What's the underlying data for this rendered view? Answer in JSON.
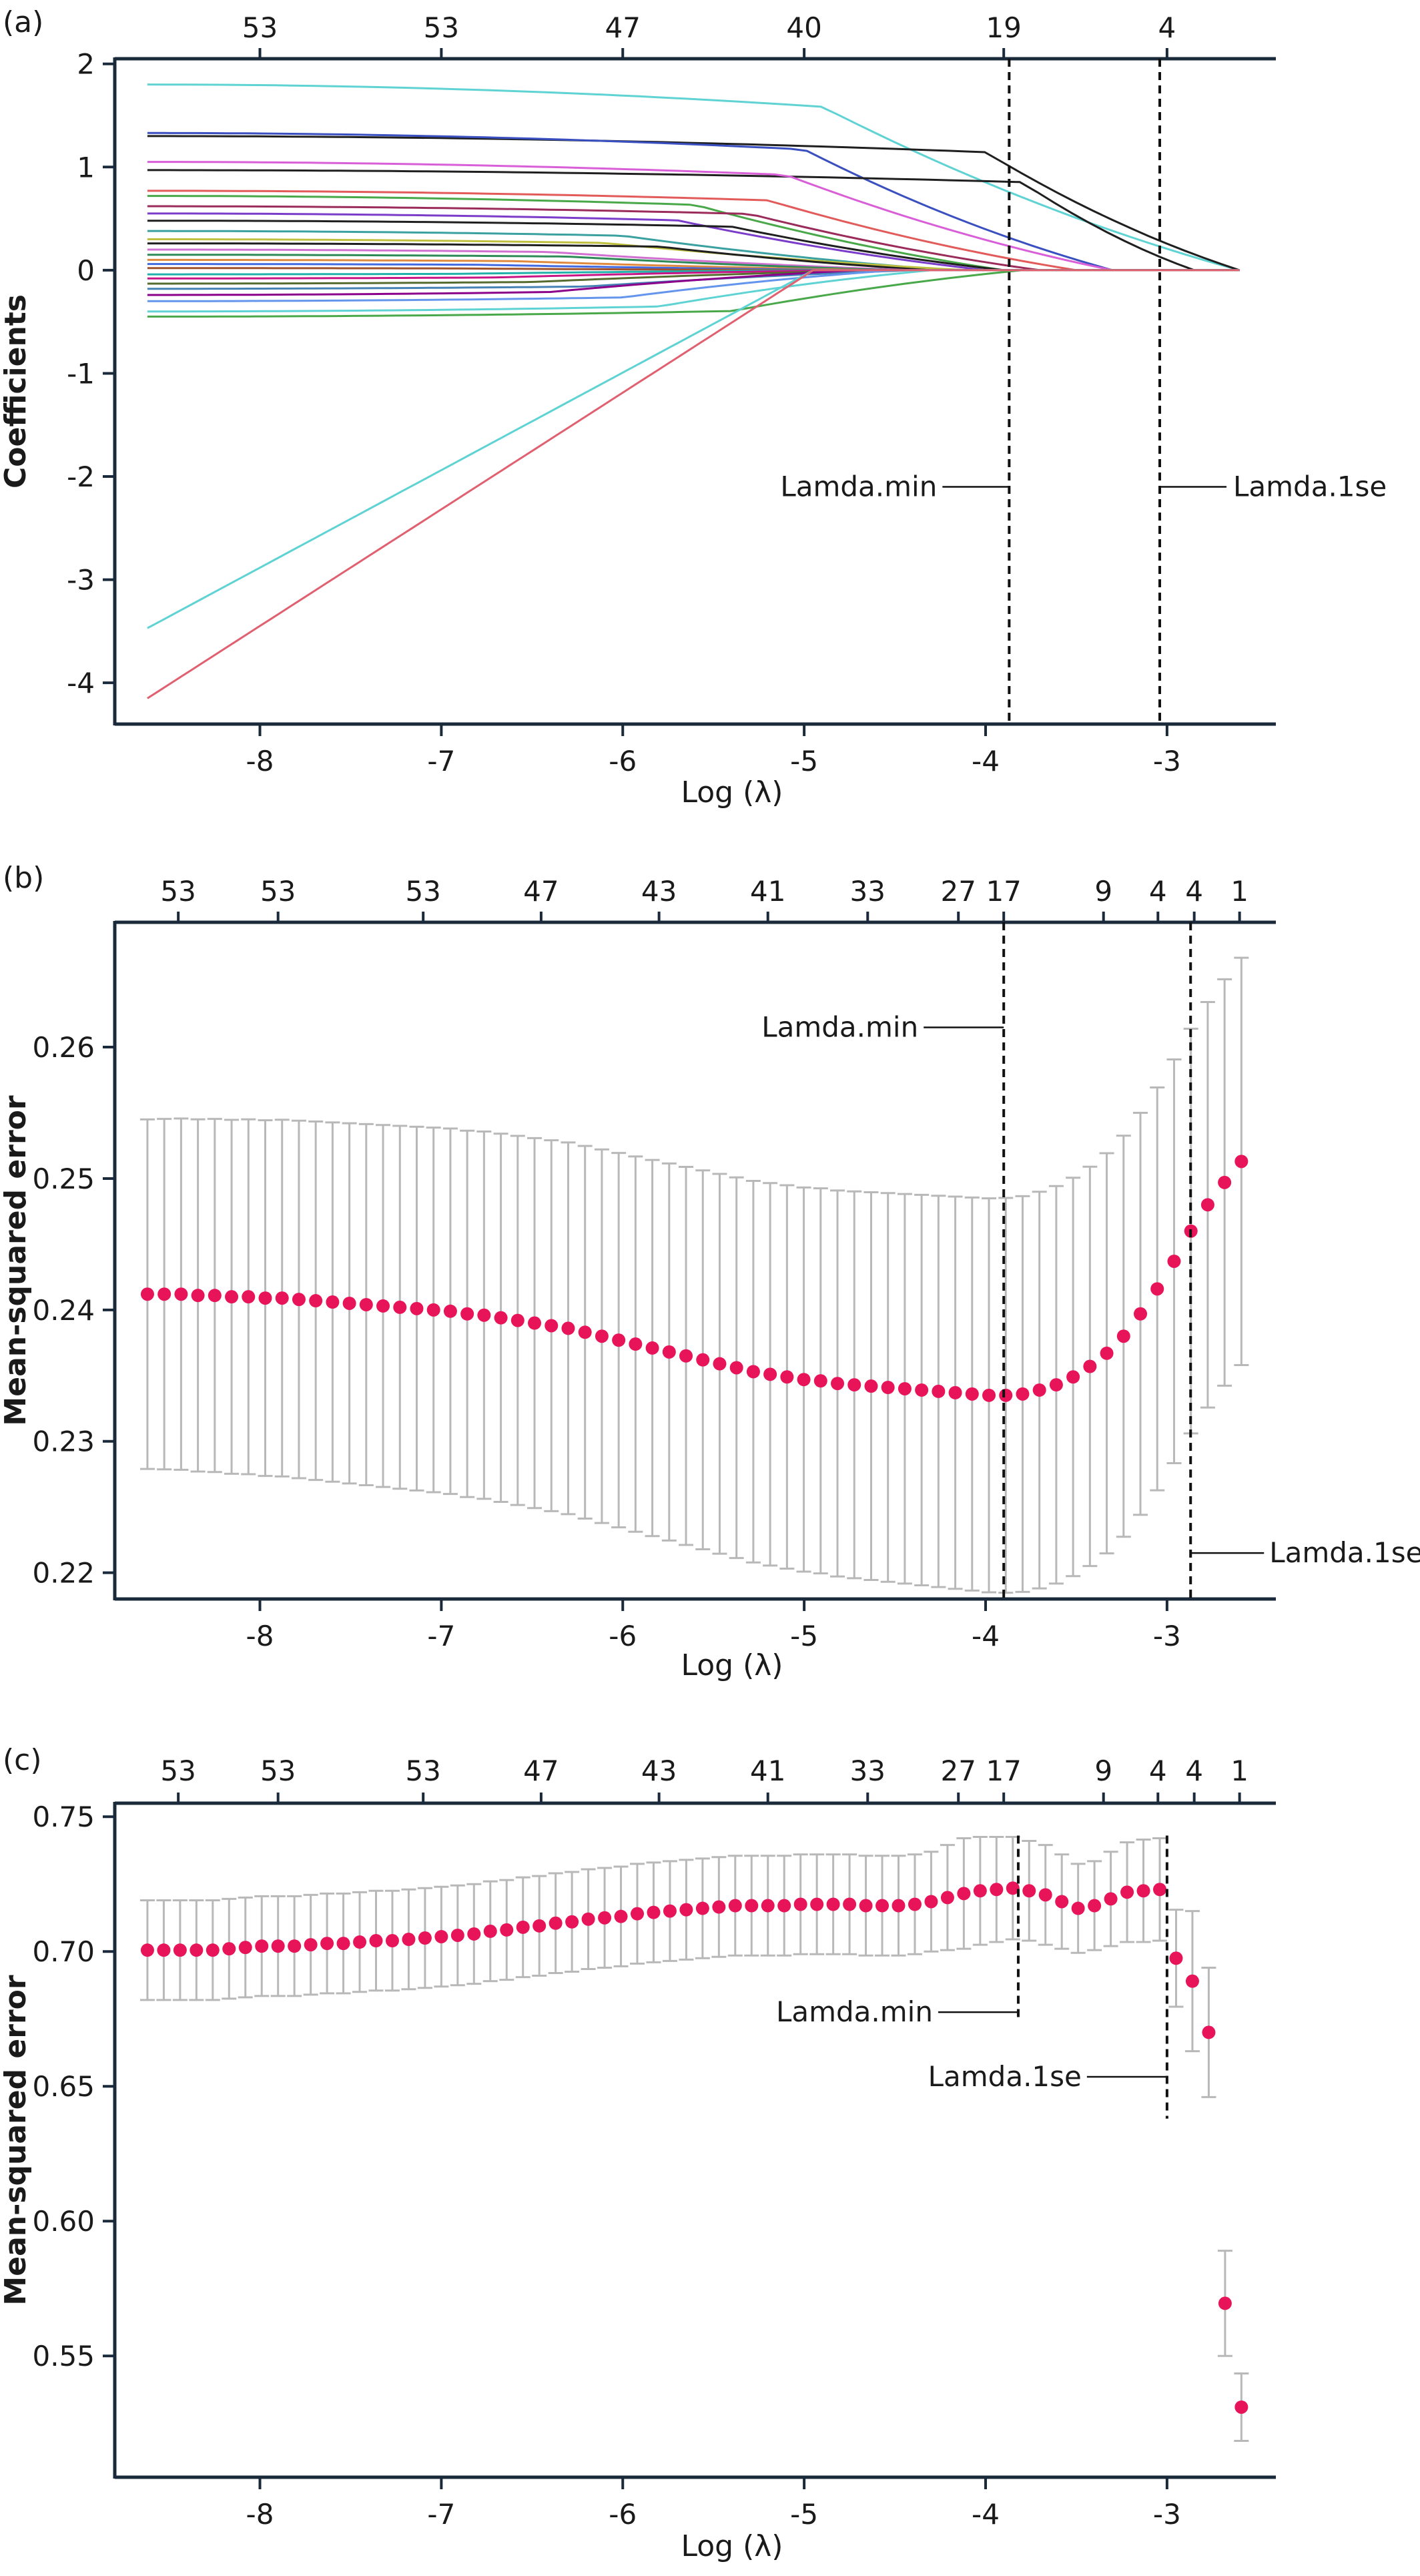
{
  "panels_labels": [
    "(a)",
    "(b)",
    "(c)"
  ],
  "chart_data": [
    {
      "type": "line",
      "panel": "(a)",
      "xlabel": "Log (λ)",
      "ylabel": "Coefficients",
      "xlim": [
        -8.8,
        -2.4
      ],
      "ylim": [
        -4.4,
        2.05
      ],
      "xticks": [
        -8,
        -7,
        -6,
        -5,
        -4,
        -3
      ],
      "yticks": [
        2,
        1,
        0,
        -1,
        -2,
        -3,
        -4
      ],
      "top_ticks": [
        {
          "x": -8,
          "label": "53"
        },
        {
          "x": -7,
          "label": "53"
        },
        {
          "x": -6,
          "label": "47"
        },
        {
          "x": -5,
          "label": "40"
        },
        {
          "x": -3.9,
          "label": "19"
        },
        {
          "x": -3,
          "label": "4"
        }
      ],
      "vlines": [
        {
          "x": -3.87,
          "label": "Lamda.min"
        },
        {
          "x": -3.04,
          "label": "Lamda.1se"
        }
      ],
      "annotation_y": -2.1,
      "x_start": -8.62,
      "series": [
        {
          "color": "#5fd3d3",
          "start": 1.8,
          "end_x": -2.6,
          "drop_x": -4.9
        },
        {
          "color": "#1f1f1f",
          "start": 1.3,
          "end_x": -2.6,
          "drop_x": -4.0
        },
        {
          "color": "#3a4fc0",
          "start": 1.33,
          "end_x": -3.3,
          "drop_x": -5.0
        },
        {
          "color": "#1f1f1f",
          "start": 0.97,
          "end_x": -2.85,
          "drop_x": -3.8
        },
        {
          "color": "#d95fd9",
          "start": 1.05,
          "end_x": -3.3,
          "drop_x": -5.1
        },
        {
          "color": "#e25a5a",
          "start": 0.77,
          "end_x": -3.5,
          "drop_x": -5.2
        },
        {
          "color": "#49a849",
          "start": 0.72,
          "end_x": -3.9,
          "drop_x": -5.6
        },
        {
          "color": "#9b2b5a",
          "start": 0.62,
          "end_x": -3.7,
          "drop_x": -5.3
        },
        {
          "color": "#7a3cc9",
          "start": 0.55,
          "end_x": -4.0,
          "drop_x": -5.7
        },
        {
          "color": "#1f1f1f",
          "start": 0.48,
          "end_x": -3.9,
          "drop_x": -5.4
        },
        {
          "color": "#3aa0a0",
          "start": 0.38,
          "end_x": -4.2,
          "drop_x": -6.0
        },
        {
          "color": "#c0c040",
          "start": 0.3,
          "end_x": -4.1,
          "drop_x": -6.1
        },
        {
          "color": "#1f1f1f",
          "start": 0.26,
          "end_x": -4.3,
          "drop_x": -5.8
        },
        {
          "color": "#d070d0",
          "start": 0.2,
          "end_x": -4.4,
          "drop_x": -6.4
        },
        {
          "color": "#2e8b57",
          "start": 0.15,
          "end_x": -4.5,
          "drop_x": -6.3
        },
        {
          "color": "#e08a40",
          "start": 0.1,
          "end_x": -4.6,
          "drop_x": -6.6
        },
        {
          "color": "#4169e1",
          "start": 0.06,
          "end_x": -4.7,
          "drop_x": -6.8
        },
        {
          "color": "#a0522d",
          "start": 0.02,
          "end_x": -4.8,
          "drop_x": -7.0
        },
        {
          "color": "#20b2aa",
          "start": -0.04,
          "end_x": -4.9,
          "drop_x": -6.9
        },
        {
          "color": "#c71585",
          "start": -0.08,
          "end_x": -4.8,
          "drop_x": -6.7
        },
        {
          "color": "#556b2f",
          "start": -0.13,
          "end_x": -4.6,
          "drop_x": -6.5
        },
        {
          "color": "#4682b4",
          "start": -0.18,
          "end_x": -4.4,
          "drop_x": -6.2
        },
        {
          "color": "#8b008b",
          "start": -0.24,
          "end_x": -4.7,
          "drop_x": -6.4
        },
        {
          "color": "#6495ed",
          "start": -0.3,
          "end_x": -4.5,
          "drop_x": -6.0
        },
        {
          "color": "#5fd3d3",
          "start": -0.4,
          "end_x": -4.3,
          "drop_x": -5.8
        },
        {
          "color": "#49a849",
          "start": -0.45,
          "end_x": -3.8,
          "drop_x": -5.4
        },
        {
          "color": "#5fd3d3",
          "start": -3.47,
          "end_x": -4.95,
          "drop_x": -4.95
        },
        {
          "color": "#e06070",
          "start": -4.15,
          "end_x": -4.95,
          "drop_x": -4.95
        }
      ]
    },
    {
      "type": "scatter",
      "panel": "(b)",
      "xlabel": "Log (λ)",
      "ylabel": "Mean-squared error",
      "xlim": [
        -8.8,
        -2.4
      ],
      "ylim": [
        0.218,
        0.2695
      ],
      "xticks": [
        -8,
        -7,
        -6,
        -5,
        -4,
        -3
      ],
      "yticks": [
        0.26,
        0.25,
        0.24,
        0.23,
        0.22
      ],
      "ytick_labels": [
        "0.26",
        "0.25",
        "0.24",
        "0.23",
        "0.22"
      ],
      "top_ticks": [
        {
          "x": -8.45,
          "label": "53"
        },
        {
          "x": -7.9,
          "label": "53"
        },
        {
          "x": -7.1,
          "label": "53"
        },
        {
          "x": -6.45,
          "label": "47"
        },
        {
          "x": -5.8,
          "label": "43"
        },
        {
          "x": -5.2,
          "label": "41"
        },
        {
          "x": -4.65,
          "label": "33"
        },
        {
          "x": -4.15,
          "label": "27"
        },
        {
          "x": -3.9,
          "label": "17"
        },
        {
          "x": -3.35,
          "label": "9"
        },
        {
          "x": -3.05,
          "label": "4"
        },
        {
          "x": -2.85,
          "label": "4"
        },
        {
          "x": -2.6,
          "label": "1"
        }
      ],
      "vlines": [
        {
          "x": -3.9,
          "label": "Lamda.min",
          "side": "left",
          "y": 0.2615
        },
        {
          "x": -2.87,
          "label": "Lamda.1se",
          "side": "right",
          "y": 0.2215
        }
      ],
      "x_start": -8.62,
      "x_end": -2.59,
      "points": [
        0.2412,
        0.2412,
        0.2412,
        0.2411,
        0.2411,
        0.241,
        0.241,
        0.2409,
        0.2409,
        0.2408,
        0.2407,
        0.2406,
        0.2405,
        0.2404,
        0.2403,
        0.2402,
        0.2401,
        0.24,
        0.2399,
        0.2397,
        0.2396,
        0.2394,
        0.2392,
        0.239,
        0.2388,
        0.2386,
        0.2383,
        0.238,
        0.2377,
        0.2374,
        0.2371,
        0.2368,
        0.2365,
        0.2362,
        0.2359,
        0.2356,
        0.2353,
        0.2351,
        0.2349,
        0.2347,
        0.2346,
        0.2344,
        0.2343,
        0.2342,
        0.2341,
        0.234,
        0.2339,
        0.2338,
        0.2337,
        0.2336,
        0.2335,
        0.2335,
        0.2336,
        0.2339,
        0.2343,
        0.2349,
        0.2357,
        0.2367,
        0.238,
        0.2397,
        0.2416,
        0.2437,
        0.246,
        0.248,
        0.2497,
        0.2513
      ],
      "half_width_start": 0.0133,
      "half_width_end": 0.0155
    },
    {
      "type": "scatter",
      "panel": "(c)",
      "xlabel": "Log (λ)",
      "ylabel": "Mean-squared error",
      "xlim": [
        -8.8,
        -2.4
      ],
      "ylim": [
        0.505,
        0.755
      ],
      "xticks": [
        -8,
        -7,
        -6,
        -5,
        -4,
        -3
      ],
      "yticks": [
        0.75,
        0.7,
        0.65,
        0.6,
        0.55
      ],
      "ytick_labels": [
        "0.75",
        "0.70",
        "0.65",
        "0.60",
        "0.55"
      ],
      "top_ticks": [
        {
          "x": -8.45,
          "label": "53"
        },
        {
          "x": -7.9,
          "label": "53"
        },
        {
          "x": -7.1,
          "label": "53"
        },
        {
          "x": -6.45,
          "label": "47"
        },
        {
          "x": -5.8,
          "label": "43"
        },
        {
          "x": -5.2,
          "label": "41"
        },
        {
          "x": -4.65,
          "label": "33"
        },
        {
          "x": -4.15,
          "label": "27"
        },
        {
          "x": -3.9,
          "label": "17"
        },
        {
          "x": -3.35,
          "label": "9"
        },
        {
          "x": -3.05,
          "label": "4"
        },
        {
          "x": -2.85,
          "label": "4"
        },
        {
          "x": -2.6,
          "label": "1"
        }
      ],
      "vlines": [
        {
          "x": -3.82,
          "label": "Lamda.min",
          "side": "left",
          "y": 0.6775,
          "y_from": 0.743,
          "y_to": 0.674
        },
        {
          "x": -3.0,
          "label": "Lamda.1se",
          "side": "left",
          "y": 0.6535,
          "y_from": 0.743,
          "y_to": 0.638
        }
      ],
      "x_start": -8.62,
      "x_end": -2.59,
      "points": [
        0.7005,
        0.7005,
        0.7005,
        0.7005,
        0.7005,
        0.701,
        0.7015,
        0.702,
        0.702,
        0.702,
        0.7025,
        0.703,
        0.703,
        0.7035,
        0.704,
        0.704,
        0.7045,
        0.705,
        0.7055,
        0.706,
        0.7065,
        0.7075,
        0.708,
        0.709,
        0.7095,
        0.7105,
        0.711,
        0.712,
        0.7125,
        0.713,
        0.714,
        0.7145,
        0.715,
        0.7155,
        0.716,
        0.7165,
        0.717,
        0.717,
        0.717,
        0.717,
        0.7175,
        0.7175,
        0.7175,
        0.7175,
        0.717,
        0.717,
        0.717,
        0.7175,
        0.7185,
        0.72,
        0.7215,
        0.7225,
        0.723,
        0.7235,
        0.7225,
        0.721,
        0.7185,
        0.716,
        0.717,
        0.7195,
        0.722,
        0.7225,
        0.723,
        0.6975,
        0.689,
        0.67,
        0.5695,
        0.531
      ],
      "half_widths": [
        0.0185,
        0.0185,
        0.0185,
        0.0185,
        0.0185,
        0.0185,
        0.0185,
        0.0185,
        0.0185,
        0.0185,
        0.0185,
        0.0185,
        0.0185,
        0.0185,
        0.0185,
        0.0185,
        0.0185,
        0.0185,
        0.0185,
        0.0185,
        0.0185,
        0.0185,
        0.0185,
        0.0185,
        0.0185,
        0.0185,
        0.0185,
        0.0185,
        0.0185,
        0.0185,
        0.0185,
        0.0185,
        0.0185,
        0.0185,
        0.0185,
        0.0185,
        0.0185,
        0.0185,
        0.0185,
        0.0185,
        0.0185,
        0.0185,
        0.0185,
        0.0185,
        0.0185,
        0.0185,
        0.0185,
        0.0185,
        0.0185,
        0.0195,
        0.0205,
        0.02,
        0.0195,
        0.019,
        0.0185,
        0.0185,
        0.0175,
        0.0165,
        0.0165,
        0.0175,
        0.0185,
        0.019,
        0.019,
        0.018,
        0.026,
        0.024,
        0.0195,
        0.0125
      ]
    }
  ]
}
